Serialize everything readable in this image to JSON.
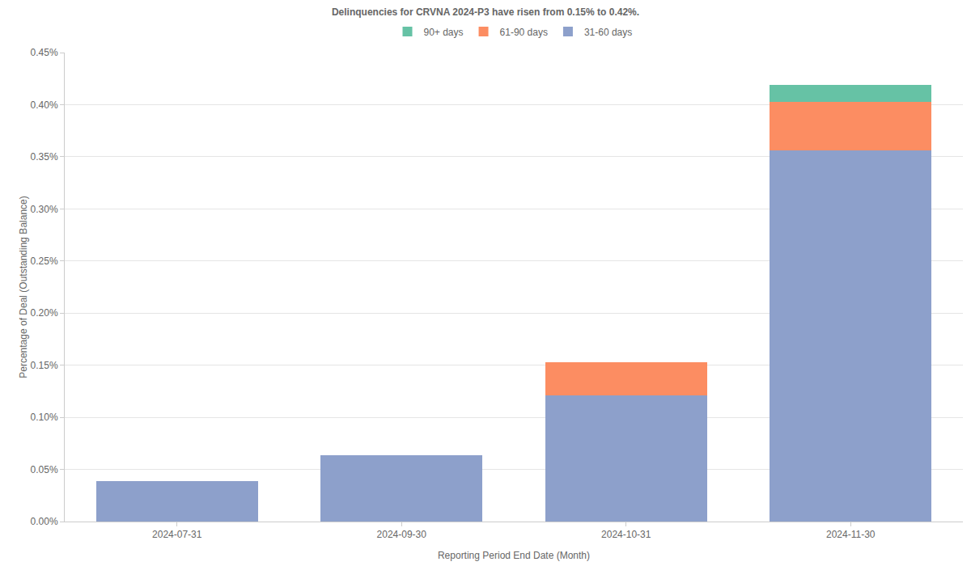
{
  "chart_data": {
    "type": "bar",
    "title": "Delinquencies for CRVNA 2024-P3 have risen from 0.15% to 0.42%.",
    "x_label": "Reporting Period End Date (Month)",
    "y_label": "Percentage of Deal (Outstanding Balance)",
    "categories": [
      "2024-07-31",
      "2024-09-30",
      "2024-10-31",
      "2024-11-30"
    ],
    "series": [
      {
        "name": "31-60 days",
        "color": "#8da0cb",
        "values": [
          0.039,
          0.064,
          0.121,
          0.356
        ]
      },
      {
        "name": "61-90 days",
        "color": "#fc8d62",
        "values": [
          0,
          0,
          0.032,
          0.047
        ]
      },
      {
        "name": "90+ days",
        "color": "#66c2a5",
        "values": [
          0,
          0,
          0,
          0.016
        ]
      }
    ],
    "stacked": true,
    "ylim": [
      0,
      0.45
    ],
    "yticks": [
      {
        "value": 0,
        "label": "0.00%"
      },
      {
        "value": 0.05,
        "label": "0.05%"
      },
      {
        "value": 0.1,
        "label": "0.10%"
      },
      {
        "value": 0.15,
        "label": "0.15%"
      },
      {
        "value": 0.2,
        "label": "0.20%"
      },
      {
        "value": 0.25,
        "label": "0.25%"
      },
      {
        "value": 0.3,
        "label": "0.30%"
      },
      {
        "value": 0.35,
        "label": "0.35%"
      },
      {
        "value": 0.4,
        "label": "0.40%"
      },
      {
        "value": 0.45,
        "label": "0.45%"
      }
    ],
    "grid": true,
    "legend": "top"
  }
}
